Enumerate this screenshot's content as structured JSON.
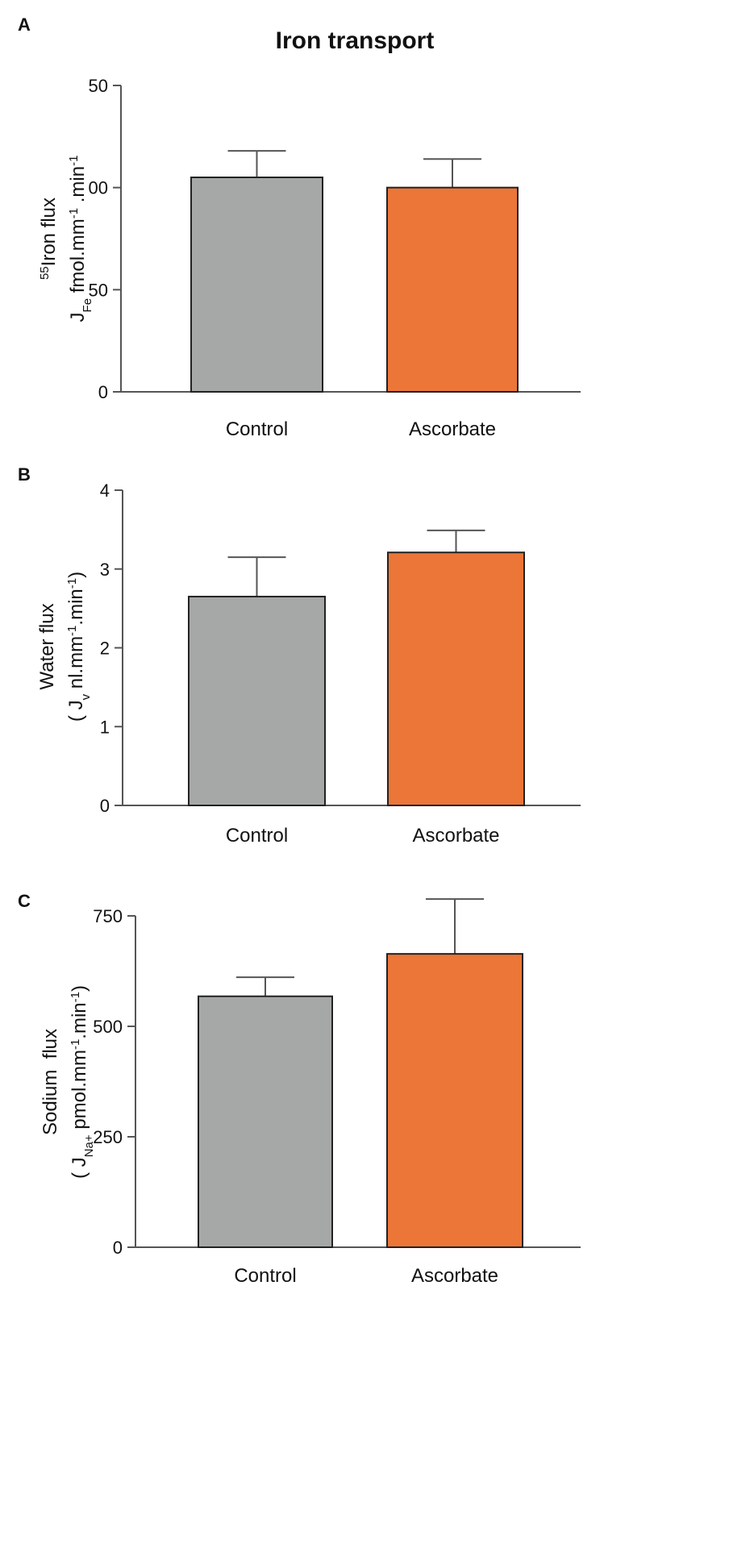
{
  "chart_data": [
    {
      "type": "bar",
      "panel_label": "A",
      "title": "Iron transport",
      "ylabel": [
        [
          {
            "text": "55",
            "script": "super"
          },
          {
            "text": "Iron flux"
          }
        ],
        [
          {
            "text": "J"
          },
          {
            "text": "Fe",
            "script": "sub"
          },
          {
            "text": " fmol.mm"
          },
          {
            "text": "-1",
            "script": "super"
          },
          {
            "text": " .min"
          },
          {
            "text": "-1",
            "script": "super"
          }
        ]
      ],
      "categories": [
        "Control",
        "Ascorbate"
      ],
      "values": [
        105,
        100
      ],
      "errors": [
        13,
        14
      ],
      "colors": [
        "#a6a8a7",
        "#ec7538"
      ],
      "ylim": [
        0,
        150
      ],
      "yticks": [
        0,
        50,
        {
          "value": 100,
          "label": "00"
        },
        {
          "value": 150,
          "label": "50"
        }
      ]
    },
    {
      "type": "bar",
      "panel_label": "B",
      "ylabel": [
        [
          {
            "text": "Water flux"
          }
        ],
        [
          {
            "text": "( J"
          },
          {
            "text": "v",
            "script": "sub"
          },
          {
            "text": " nl.mm"
          },
          {
            "text": "-1",
            "script": "super"
          },
          {
            "text": ".min"
          },
          {
            "text": "-1",
            "script": "super"
          },
          {
            "text": ")"
          }
        ]
      ],
      "categories": [
        "Control",
        "Ascorbate"
      ],
      "values": [
        2.65,
        3.21
      ],
      "errors": [
        0.5,
        0.28
      ],
      "colors": [
        "#a6a8a7",
        "#ec7538"
      ],
      "ylim": [
        0,
        4
      ],
      "yticks": [
        0,
        1,
        2,
        3,
        4
      ]
    },
    {
      "type": "bar",
      "panel_label": "C",
      "ylabel": [
        [
          {
            "text": "Sodium  flux"
          }
        ],
        [
          {
            "text": "( J"
          },
          {
            "text": "Na+",
            "script": "sub"
          },
          {
            "text": " pmol.mm"
          },
          {
            "text": "-1",
            "script": "super"
          },
          {
            "text": ".min"
          },
          {
            "text": "-1",
            "script": "super"
          },
          {
            "text": ")"
          }
        ]
      ],
      "categories": [
        "Control",
        "Ascorbate"
      ],
      "values": [
        568,
        664
      ],
      "errors": [
        43,
        124
      ],
      "colors": [
        "#a6a8a7",
        "#ec7538"
      ],
      "ylim": [
        0,
        750
      ],
      "yticks": [
        0,
        250,
        500,
        750
      ]
    }
  ]
}
